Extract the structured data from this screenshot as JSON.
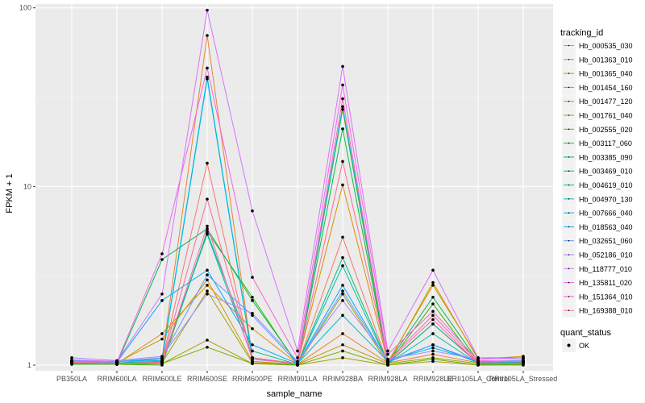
{
  "chart_data": {
    "type": "line",
    "xlabel": "sample_name",
    "ylabel": "FPKM + 1",
    "y_scale": "log10",
    "ylim": [
      0.93,
      105
    ],
    "y_ticks": [
      1,
      10,
      100
    ],
    "y_tick_labels": [
      "1",
      "10",
      "100"
    ],
    "grid": true,
    "legend_position": "right",
    "categories": [
      "PB350LA",
      "RRIM600LA",
      "RRIM600LE",
      "RRIM600SE",
      "RRIM600PE",
      "RRIM901LA",
      "RRIM928BA",
      "RRIM928LA",
      "RRIM928LE",
      "RRII105LA_Control",
      "RRII105LA_Stressed"
    ],
    "legend_title": "tracking_id",
    "point_legend": {
      "title": "quant_status",
      "label": "OK"
    },
    "series": [
      {
        "name": "Hb_000535_030",
        "color": "#F8766D",
        "values": [
          1.02,
          1.01,
          1.05,
          13.5,
          1.05,
          1.0,
          5.2,
          1.02,
          1.7,
          1.02,
          1.03
        ]
      },
      {
        "name": "Hb_001363_010",
        "color": "#EC8239",
        "values": [
          1.03,
          1.02,
          1.1,
          70,
          1.1,
          1.01,
          1.5,
          1.03,
          1.15,
          1.03,
          1.05
        ]
      },
      {
        "name": "Hb_001365_040",
        "color": "#DB8E00",
        "values": [
          1.04,
          1.02,
          1.5,
          2.8,
          1.6,
          1.02,
          10.2,
          1.04,
          2.8,
          1.1,
          1.1
        ]
      },
      {
        "name": "Hb_001454_160",
        "color": "#C79800",
        "values": [
          1.05,
          1.03,
          1.4,
          3.0,
          1.05,
          1.01,
          1.3,
          1.02,
          2.9,
          1.08,
          1.12
        ]
      },
      {
        "name": "Hb_001477_120",
        "color": "#AFA100",
        "values": [
          1.02,
          1.01,
          1.02,
          1.38,
          1.02,
          1.0,
          1.1,
          1.0,
          1.05,
          1.0,
          1.0
        ]
      },
      {
        "name": "Hb_001761_040",
        "color": "#94A900",
        "values": [
          1.03,
          1.02,
          1.03,
          2.6,
          1.03,
          1.01,
          2.5,
          1.02,
          1.1,
          1.02,
          1.03
        ]
      },
      {
        "name": "Hb_002555_020",
        "color": "#72B000",
        "values": [
          1.02,
          1.01,
          1.02,
          1.26,
          1.02,
          1.0,
          1.2,
          1.0,
          1.08,
          1.0,
          1.01
        ]
      },
      {
        "name": "Hb_003117_060",
        "color": "#39B600",
        "values": [
          1.01,
          1.01,
          1.0,
          5.6,
          2.4,
          1.0,
          27,
          1.01,
          2.2,
          1.01,
          1.02
        ]
      },
      {
        "name": "Hb_003385_090",
        "color": "#00BB4E",
        "values": [
          1.02,
          1.02,
          3.9,
          5.8,
          2.3,
          1.02,
          21,
          1.03,
          2.4,
          1.05,
          1.05
        ]
      },
      {
        "name": "Hb_003469_010",
        "color": "#00BF7D",
        "values": [
          1.03,
          1.03,
          1.05,
          5.5,
          1.2,
          1.01,
          4.0,
          1.03,
          1.7,
          1.03,
          1.04
        ]
      },
      {
        "name": "Hb_004619_010",
        "color": "#00C1A3",
        "values": [
          1.04,
          1.03,
          1.05,
          5.4,
          1.1,
          1.01,
          3.6,
          1.02,
          1.5,
          1.02,
          1.03
        ]
      },
      {
        "name": "Hb_004970_130",
        "color": "#00BFC4",
        "values": [
          1.05,
          1.05,
          1.08,
          41,
          1.1,
          1.02,
          1.9,
          1.05,
          1.3,
          1.04,
          1.05
        ]
      },
      {
        "name": "Hb_007666_040",
        "color": "#00B8E5",
        "values": [
          1.06,
          1.05,
          1.06,
          40,
          1.08,
          1.02,
          28,
          1.06,
          1.25,
          1.05,
          1.06
        ]
      },
      {
        "name": "Hb_018563_040",
        "color": "#00ABFD",
        "values": [
          1.05,
          1.04,
          2.3,
          3.4,
          1.3,
          1.02,
          2.8,
          1.04,
          1.3,
          1.03,
          1.05
        ]
      },
      {
        "name": "Hb_032651_060",
        "color": "#619CFF",
        "values": [
          1.06,
          1.05,
          1.1,
          3.2,
          1.9,
          1.02,
          2.6,
          1.05,
          1.3,
          1.05,
          1.06
        ]
      },
      {
        "name": "Hb_052186_010",
        "color": "#A58AFF",
        "values": [
          1.1,
          1.06,
          1.12,
          2.5,
          1.95,
          1.05,
          2.3,
          1.08,
          1.2,
          1.08,
          1.1
        ]
      },
      {
        "name": "Hb_118777_010",
        "color": "#DB72FB",
        "values": [
          1.07,
          1.05,
          2.5,
          97,
          7.3,
          1.2,
          47,
          1.2,
          3.4,
          1.1,
          1.08
        ]
      },
      {
        "name": "Hb_135811_020",
        "color": "#F564E3",
        "values": [
          1.05,
          1.04,
          4.2,
          46,
          3.1,
          1.1,
          37,
          1.15,
          2.0,
          1.06,
          1.05
        ]
      },
      {
        "name": "Hb_151364_010",
        "color": "#FF61C3",
        "values": [
          1.03,
          1.02,
          1.03,
          6.0,
          1.08,
          1.02,
          31,
          1.05,
          1.8,
          1.02,
          1.03
        ]
      },
      {
        "name": "Hb_169388_010",
        "color": "#FF6C90",
        "values": [
          1.04,
          1.02,
          1.04,
          8.5,
          1.1,
          1.02,
          13.8,
          1.06,
          1.9,
          1.04,
          1.05
        ]
      }
    ]
  }
}
